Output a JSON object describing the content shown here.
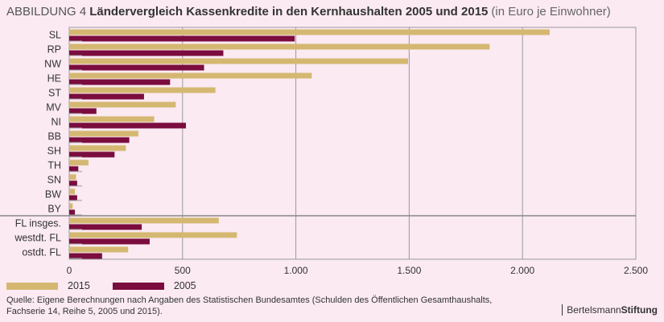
{
  "title": {
    "label": "ABBILDUNG 4",
    "main": "Ländervergleich Kassenkredite in den Kernhaushalten 2005 und 2015",
    "unit": "(in Euro je Einwohner)"
  },
  "chart_data": {
    "type": "bar",
    "orientation": "horizontal",
    "categories": [
      "SL",
      "RP",
      "NW",
      "HE",
      "ST",
      "MV",
      "NI",
      "BB",
      "SH",
      "TH",
      "SN",
      "BW",
      "BY",
      "FL insges.",
      "westdt. FL",
      "ostdt. FL"
    ],
    "series": [
      {
        "name": "2015",
        "color": "#d4b872",
        "values": [
          2120,
          1855,
          1495,
          1070,
          645,
          470,
          375,
          305,
          250,
          85,
          30,
          25,
          15,
          660,
          740,
          260
        ]
      },
      {
        "name": "2005",
        "color": "#7a0c3e",
        "values": [
          995,
          680,
          595,
          445,
          330,
          120,
          515,
          265,
          200,
          40,
          35,
          35,
          25,
          320,
          355,
          145
        ]
      }
    ],
    "x_ticks": [
      "0",
      "500",
      "1.000",
      "1.500",
      "2.000",
      "2.500"
    ],
    "x_tick_values": [
      0,
      500,
      1000,
      1500,
      2000,
      2500
    ],
    "xlim": [
      0,
      2500
    ],
    "grid": true,
    "legend_position": "bottom-left"
  },
  "source": "Quelle: Eigene Berechnungen nach Angaben des Statistischen Bundesamtes (Schulden des Öffentlichen Gesamthaushalts, Fachserie 14, Reihe 5, 2005 und 2015).",
  "brand": {
    "part1": "Bertelsmann",
    "part2": "Stiftung"
  }
}
